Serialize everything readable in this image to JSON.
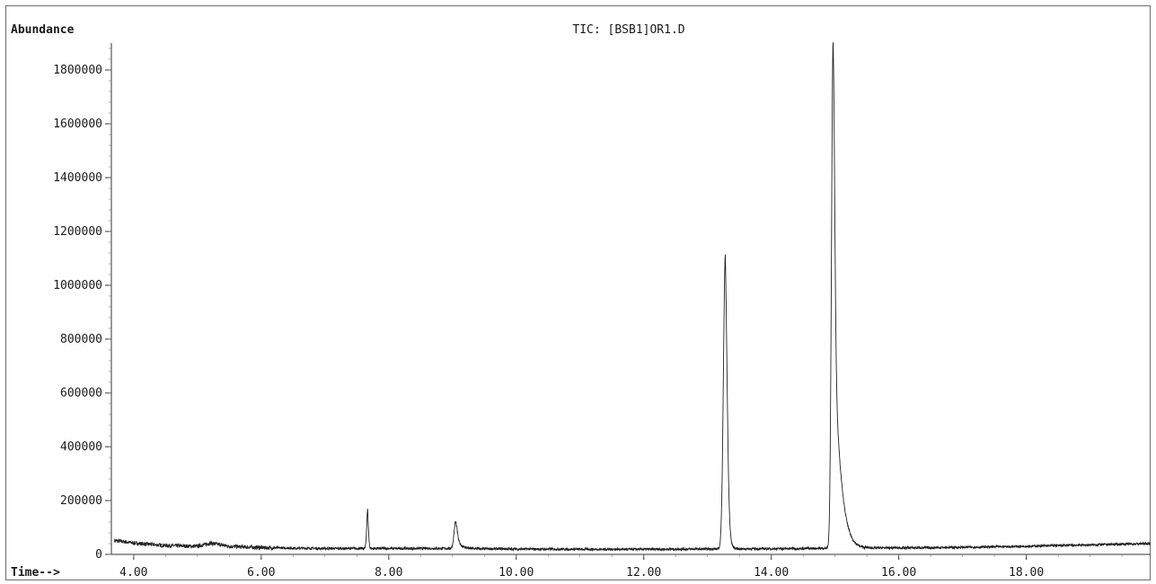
{
  "chart_data": {
    "type": "line",
    "title": "TIC: [BSB1]OR1.D",
    "ylabel": "Abundance",
    "xlabel": "Time-->",
    "xlim": [
      3.65,
      19.95
    ],
    "ylim": [
      0,
      1900000
    ],
    "x_ticks": [
      4,
      6,
      8,
      10,
      12,
      14,
      16,
      18
    ],
    "x_tick_labels": [
      "4.00",
      "6.00",
      "8.00",
      "10.00",
      "12.00",
      "14.00",
      "16.00",
      "18.00"
    ],
    "y_ticks": [
      0,
      200000,
      400000,
      600000,
      800000,
      1000000,
      1200000,
      1400000,
      1600000,
      1800000
    ],
    "y_tick_labels": [
      "0",
      "200000",
      "400000",
      "600000",
      "800000",
      "1000000",
      "1200000",
      "1400000",
      "1600000",
      "1800000"
    ],
    "grid": false,
    "line_color": "#222222",
    "baseline": [
      [
        3.7,
        52000
      ],
      [
        4.0,
        42000
      ],
      [
        4.5,
        33000
      ],
      [
        5.0,
        30000
      ],
      [
        5.2,
        42000
      ],
      [
        5.5,
        30000
      ],
      [
        6.0,
        25000
      ],
      [
        7.0,
        22000
      ],
      [
        8.0,
        22000
      ],
      [
        9.0,
        22000
      ],
      [
        10.0,
        20000
      ],
      [
        11.0,
        19000
      ],
      [
        12.0,
        19000
      ],
      [
        13.0,
        20000
      ],
      [
        14.0,
        21000
      ],
      [
        15.5,
        24000
      ],
      [
        16.5,
        25000
      ],
      [
        17.5,
        28000
      ],
      [
        18.5,
        33000
      ],
      [
        19.5,
        38000
      ],
      [
        19.95,
        40000
      ]
    ],
    "peaks": [
      {
        "rt": 7.67,
        "height": 145000,
        "width": 0.015,
        "tail": 0.01
      },
      {
        "rt": 9.05,
        "height": 100000,
        "width": 0.025,
        "tail": 0.08
      },
      {
        "rt": 13.28,
        "height": 1090000,
        "width": 0.03,
        "tail": 0.04
      },
      {
        "rt": 14.97,
        "height": 1880000,
        "width": 0.025,
        "tail": 0.12
      }
    ]
  }
}
